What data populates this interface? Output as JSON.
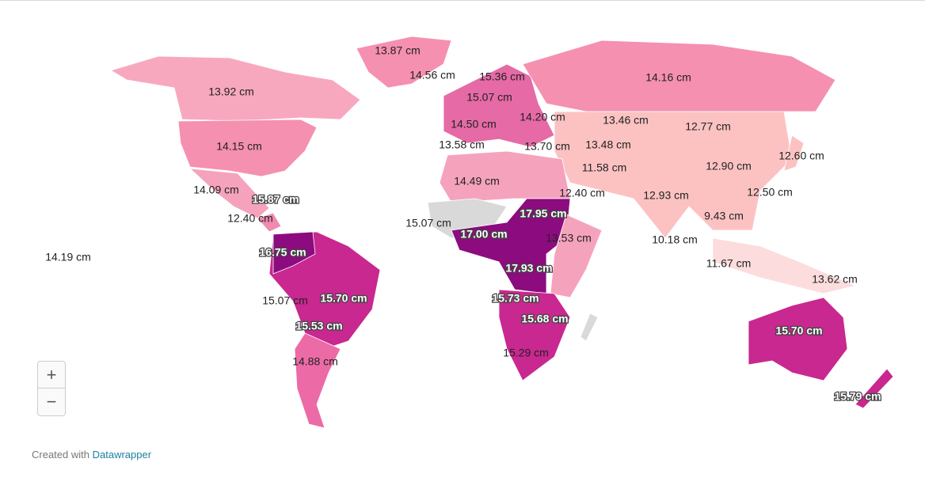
{
  "labels": [
    "13.87 cm",
    "14.56 cm",
    "15.36 cm",
    "14.16 cm",
    "13.92 cm",
    "15.07 cm",
    "14.20 cm",
    "14.50 cm",
    "13.46 cm",
    "12.77 cm",
    "14.15 cm",
    "13.58 cm",
    "13.70 cm",
    "13.48 cm",
    "11.58 cm",
    "12.90 cm",
    "12.60 cm",
    "14.49 cm",
    "14.09 cm",
    "15.87 cm",
    "12.40 cm",
    "12.93 cm",
    "12.50 cm",
    "12.40 cm",
    "17.95 cm",
    "9.43 cm",
    "15.07 cm",
    "17.00 cm",
    "13.53 cm",
    "10.18 cm",
    "14.19 cm",
    "16.75 cm",
    "17.93 cm",
    "11.67 cm",
    "13.62 cm",
    "15.07 cm",
    "15.70 cm",
    "15.73 cm",
    "15.53 cm",
    "15.68 cm",
    "15.70 cm",
    "15.29 cm",
    "14.88 cm",
    "15.79 cm"
  ],
  "zoom_in": "+",
  "zoom_out": "−",
  "footer": {
    "text": "Created with",
    "link": "Datawrapper"
  }
}
